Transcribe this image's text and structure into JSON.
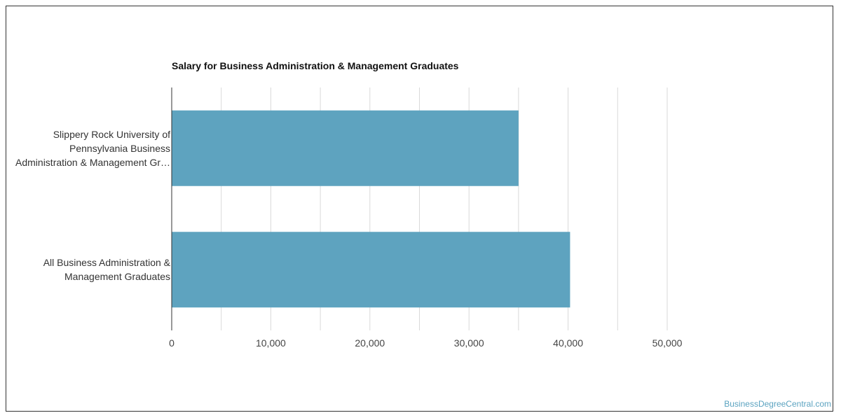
{
  "chart_data": {
    "type": "bar",
    "orientation": "horizontal",
    "title": "Salary for Business Administration & Management Graduates",
    "categories": [
      [
        "Slippery Rock University of",
        "Pennsylvania Business",
        "Administration & Management Gr…"
      ],
      [
        "All Business Administration &",
        "Management Graduates"
      ]
    ],
    "values": [
      35000,
      40200
    ],
    "xlim": [
      0,
      50000
    ],
    "xticks": [
      0,
      10000,
      20000,
      30000,
      40000,
      50000
    ],
    "xtick_labels": [
      "0",
      "10,000",
      "20,000",
      "30,000",
      "40,000",
      "50,000"
    ],
    "grid": true,
    "bar_color": "#5ea3bf"
  },
  "credit": "BusinessDegreeCentral.com"
}
